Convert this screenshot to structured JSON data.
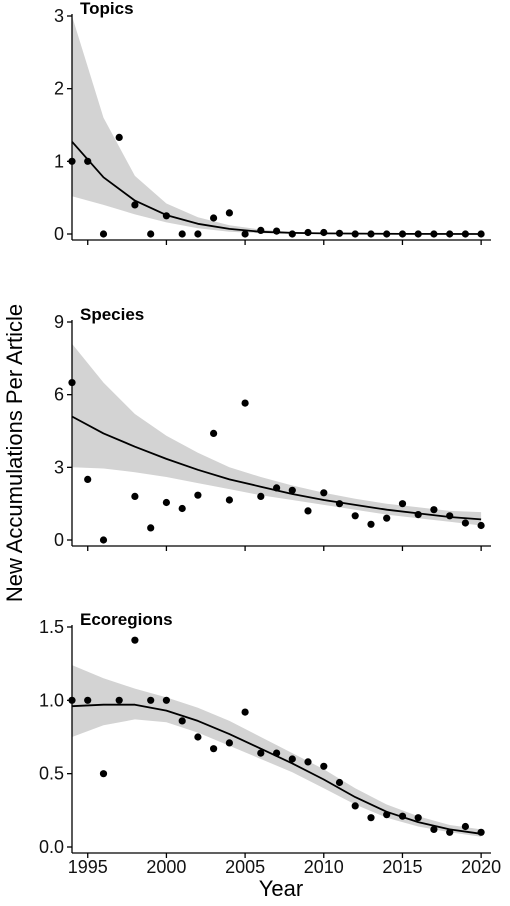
{
  "chart_data": {
    "type": "scatter",
    "ylabel": "New Accumulations Per Article",
    "xlabel": "Year",
    "xlim": [
      1994,
      2020.5
    ],
    "x_ticks": [
      1995,
      2000,
      2005,
      2010,
      2015,
      2020
    ],
    "grid": false,
    "legend": "none",
    "panels": [
      {
        "title": "Topics",
        "ylim": [
          0,
          3
        ],
        "y_ticks": [
          0,
          1,
          2,
          3
        ],
        "points": [
          {
            "x": 1994,
            "y": 1.0
          },
          {
            "x": 1995,
            "y": 1.0
          },
          {
            "x": 1996,
            "y": 0.0
          },
          {
            "x": 1997,
            "y": 1.33
          },
          {
            "x": 1998,
            "y": 0.4
          },
          {
            "x": 1999,
            "y": 0.0
          },
          {
            "x": 2000,
            "y": 0.25
          },
          {
            "x": 2001,
            "y": 0.0
          },
          {
            "x": 2002,
            "y": 0.0
          },
          {
            "x": 2003,
            "y": 0.22
          },
          {
            "x": 2004,
            "y": 0.29
          },
          {
            "x": 2005,
            "y": 0.0
          },
          {
            "x": 2006,
            "y": 0.05
          },
          {
            "x": 2007,
            "y": 0.04
          },
          {
            "x": 2008,
            "y": 0.0
          },
          {
            "x": 2009,
            "y": 0.02
          },
          {
            "x": 2010,
            "y": 0.02
          },
          {
            "x": 2011,
            "y": 0.01
          },
          {
            "x": 2012,
            "y": 0.0
          },
          {
            "x": 2013,
            "y": 0.0
          },
          {
            "x": 2014,
            "y": 0.0
          },
          {
            "x": 2015,
            "y": 0.0
          },
          {
            "x": 2016,
            "y": 0.0
          },
          {
            "x": 2017,
            "y": 0.0
          },
          {
            "x": 2018,
            "y": 0.0
          },
          {
            "x": 2019,
            "y": 0.0
          },
          {
            "x": 2020,
            "y": 0.0
          }
        ],
        "fit": {
          "x": [
            1994,
            1996,
            1998,
            2000,
            2002,
            2004,
            2006,
            2008,
            2010,
            2015,
            2020
          ],
          "y": [
            1.27,
            0.78,
            0.46,
            0.26,
            0.14,
            0.07,
            0.03,
            0.015,
            0.008,
            0.002,
            0.0
          ],
          "lower": [
            0.52,
            0.4,
            0.27,
            0.16,
            0.08,
            0.03,
            0.01,
            0.005,
            0.002,
            0.0,
            0.0
          ],
          "upper": [
            3.0,
            1.6,
            0.8,
            0.42,
            0.23,
            0.12,
            0.06,
            0.03,
            0.015,
            0.005,
            0.002
          ]
        }
      },
      {
        "title": "Species",
        "ylim": [
          0,
          9
        ],
        "y_ticks": [
          0,
          3,
          6,
          9
        ],
        "points": [
          {
            "x": 1994,
            "y": 6.5
          },
          {
            "x": 1995,
            "y": 2.5
          },
          {
            "x": 1996,
            "y": 0.0
          },
          {
            "x": 1998,
            "y": 1.8
          },
          {
            "x": 1999,
            "y": 0.5
          },
          {
            "x": 2000,
            "y": 1.55
          },
          {
            "x": 2001,
            "y": 1.3
          },
          {
            "x": 2002,
            "y": 1.85
          },
          {
            "x": 2003,
            "y": 4.4
          },
          {
            "x": 2004,
            "y": 1.65
          },
          {
            "x": 2005,
            "y": 5.65
          },
          {
            "x": 2006,
            "y": 1.8
          },
          {
            "x": 2007,
            "y": 2.15
          },
          {
            "x": 2008,
            "y": 2.05
          },
          {
            "x": 2009,
            "y": 1.2
          },
          {
            "x": 2010,
            "y": 1.95
          },
          {
            "x": 2011,
            "y": 1.5
          },
          {
            "x": 2012,
            "y": 1.0
          },
          {
            "x": 2013,
            "y": 0.65
          },
          {
            "x": 2014,
            "y": 0.9
          },
          {
            "x": 2015,
            "y": 1.5
          },
          {
            "x": 2016,
            "y": 1.05
          },
          {
            "x": 2017,
            "y": 1.25
          },
          {
            "x": 2018,
            "y": 1.0
          },
          {
            "x": 2019,
            "y": 0.7
          },
          {
            "x": 2020,
            "y": 0.6
          }
        ],
        "fit": {
          "x": [
            1994,
            1996,
            1998,
            2000,
            2002,
            2004,
            2006,
            2008,
            2010,
            2012,
            2014,
            2016,
            2018,
            2020
          ],
          "y": [
            5.1,
            4.4,
            3.85,
            3.35,
            2.9,
            2.5,
            2.2,
            1.9,
            1.65,
            1.45,
            1.25,
            1.1,
            0.95,
            0.85
          ],
          "lower": [
            3.0,
            2.95,
            2.8,
            2.6,
            2.35,
            2.1,
            1.85,
            1.65,
            1.45,
            1.25,
            1.05,
            0.9,
            0.75,
            0.6
          ],
          "upper": [
            8.1,
            6.5,
            5.2,
            4.3,
            3.6,
            3.0,
            2.6,
            2.25,
            1.95,
            1.7,
            1.5,
            1.35,
            1.2,
            1.15
          ]
        }
      },
      {
        "title": "Ecoregions",
        "ylim": [
          0,
          1.5
        ],
        "y_ticks": [
          0.0,
          0.5,
          1.0,
          1.5
        ],
        "points": [
          {
            "x": 1994,
            "y": 1.0
          },
          {
            "x": 1995,
            "y": 1.0
          },
          {
            "x": 1996,
            "y": 0.5
          },
          {
            "x": 1997,
            "y": 1.0
          },
          {
            "x": 1998,
            "y": 1.41
          },
          {
            "x": 1999,
            "y": 1.0
          },
          {
            "x": 2000,
            "y": 1.0
          },
          {
            "x": 2001,
            "y": 0.86
          },
          {
            "x": 2002,
            "y": 0.75
          },
          {
            "x": 2003,
            "y": 0.67
          },
          {
            "x": 2004,
            "y": 0.71
          },
          {
            "x": 2005,
            "y": 0.92
          },
          {
            "x": 2006,
            "y": 0.64
          },
          {
            "x": 2007,
            "y": 0.64
          },
          {
            "x": 2008,
            "y": 0.6
          },
          {
            "x": 2009,
            "y": 0.58
          },
          {
            "x": 2010,
            "y": 0.55
          },
          {
            "x": 2011,
            "y": 0.44
          },
          {
            "x": 2012,
            "y": 0.28
          },
          {
            "x": 2013,
            "y": 0.2
          },
          {
            "x": 2014,
            "y": 0.22
          },
          {
            "x": 2015,
            "y": 0.21
          },
          {
            "x": 2016,
            "y": 0.2
          },
          {
            "x": 2017,
            "y": 0.12
          },
          {
            "x": 2018,
            "y": 0.1
          },
          {
            "x": 2019,
            "y": 0.14
          },
          {
            "x": 2020,
            "y": 0.1
          }
        ],
        "fit": {
          "x": [
            1994,
            1996,
            1998,
            2000,
            2002,
            2004,
            2006,
            2008,
            2010,
            2012,
            2014,
            2016,
            2018,
            2020
          ],
          "y": [
            0.96,
            0.97,
            0.97,
            0.93,
            0.86,
            0.77,
            0.67,
            0.57,
            0.46,
            0.34,
            0.24,
            0.17,
            0.12,
            0.09
          ],
          "lower": [
            0.75,
            0.83,
            0.87,
            0.85,
            0.78,
            0.69,
            0.6,
            0.51,
            0.4,
            0.29,
            0.2,
            0.14,
            0.1,
            0.07
          ],
          "upper": [
            1.24,
            1.15,
            1.08,
            1.02,
            0.95,
            0.86,
            0.75,
            0.64,
            0.53,
            0.4,
            0.29,
            0.21,
            0.15,
            0.12
          ]
        }
      }
    ]
  },
  "colors": {
    "band": "#d3d3d3",
    "line": "#000000",
    "point": "#000000"
  }
}
